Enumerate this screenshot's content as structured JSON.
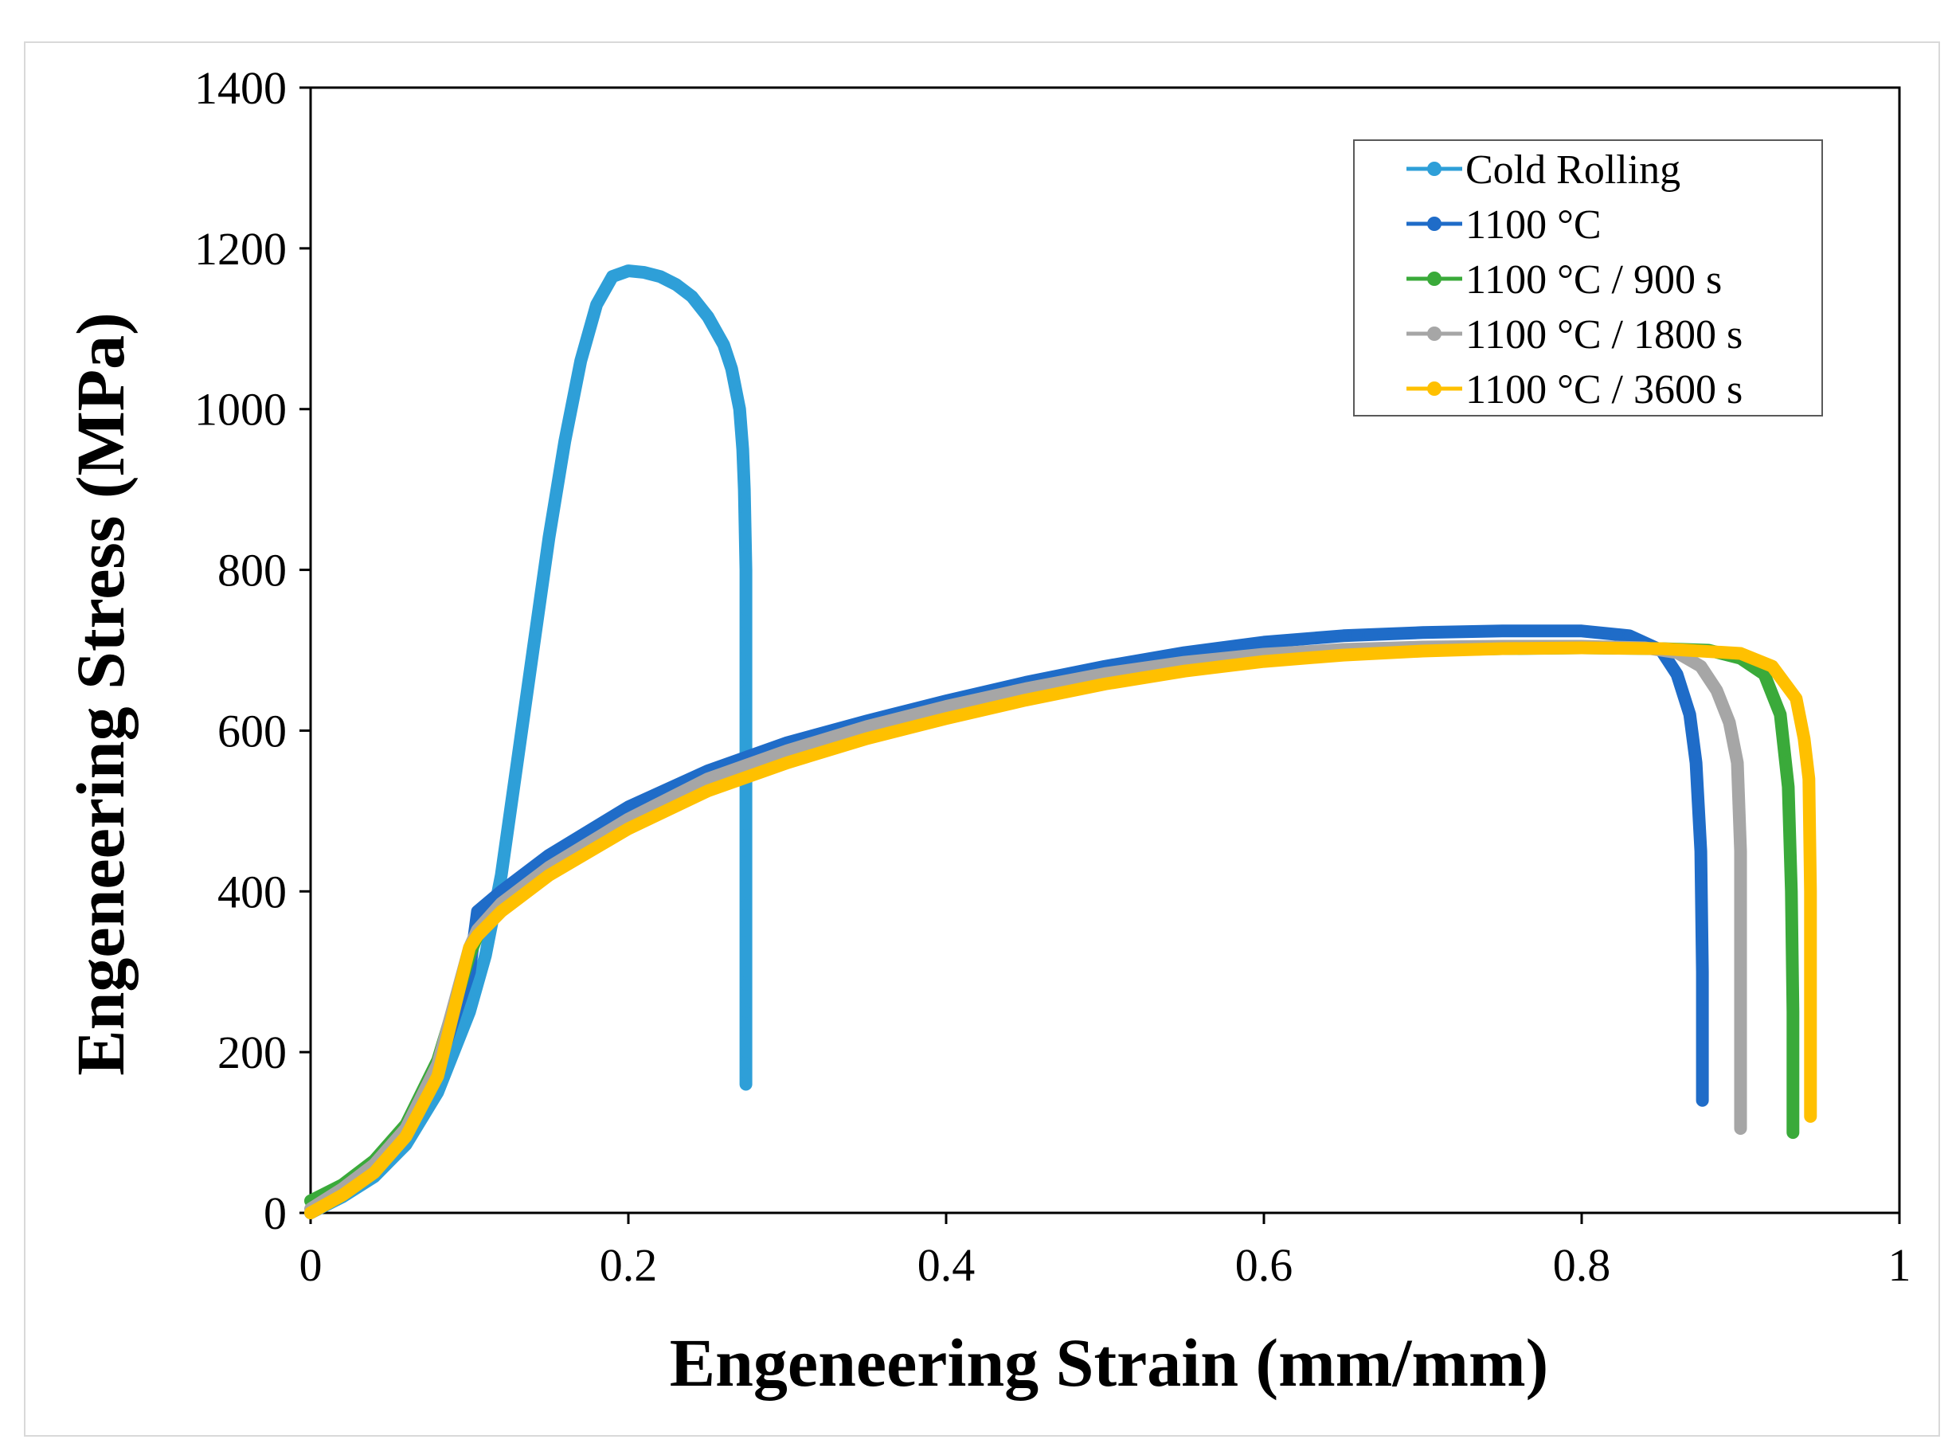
{
  "chart_data": {
    "type": "line",
    "title": "",
    "xlabel": "Engeneering Strain (mm/mm)",
    "ylabel": "Engeneering Stress (MPa)",
    "xlim": [
      0,
      1
    ],
    "ylim": [
      0,
      1400
    ],
    "x_ticks": [
      "0",
      "0.2",
      "0.4",
      "0.6",
      "0.8",
      "1"
    ],
    "y_ticks": [
      "0",
      "200",
      "400",
      "600",
      "800",
      "1000",
      "1200",
      "1400"
    ],
    "grid": false,
    "legend_position": "top-right",
    "series": [
      {
        "name": "Cold Rolling",
        "color": "#2E9FD8",
        "points": [
          [
            0,
            0
          ],
          [
            0.02,
            20
          ],
          [
            0.04,
            45
          ],
          [
            0.06,
            85
          ],
          [
            0.08,
            150
          ],
          [
            0.1,
            250
          ],
          [
            0.11,
            320
          ],
          [
            0.12,
            420
          ],
          [
            0.13,
            560
          ],
          [
            0.14,
            700
          ],
          [
            0.15,
            840
          ],
          [
            0.16,
            960
          ],
          [
            0.17,
            1060
          ],
          [
            0.18,
            1130
          ],
          [
            0.19,
            1165
          ],
          [
            0.2,
            1172
          ],
          [
            0.21,
            1170
          ],
          [
            0.22,
            1165
          ],
          [
            0.23,
            1155
          ],
          [
            0.24,
            1140
          ],
          [
            0.25,
            1115
          ],
          [
            0.26,
            1080
          ],
          [
            0.265,
            1050
          ],
          [
            0.27,
            1000
          ],
          [
            0.272,
            950
          ],
          [
            0.273,
            900
          ],
          [
            0.274,
            800
          ],
          [
            0.274,
            650
          ],
          [
            0.274,
            500
          ],
          [
            0.274,
            350
          ],
          [
            0.274,
            200
          ],
          [
            0.274,
            160
          ]
        ]
      },
      {
        "name": "1100 °C",
        "color": "#1F6CC8",
        "points": [
          [
            0,
            0
          ],
          [
            0.02,
            25
          ],
          [
            0.04,
            55
          ],
          [
            0.06,
            100
          ],
          [
            0.08,
            180
          ],
          [
            0.1,
            300
          ],
          [
            0.105,
            375
          ],
          [
            0.12,
            400
          ],
          [
            0.15,
            445
          ],
          [
            0.2,
            505
          ],
          [
            0.25,
            550
          ],
          [
            0.3,
            585
          ],
          [
            0.35,
            612
          ],
          [
            0.4,
            637
          ],
          [
            0.45,
            660
          ],
          [
            0.5,
            680
          ],
          [
            0.55,
            697
          ],
          [
            0.6,
            710
          ],
          [
            0.65,
            718
          ],
          [
            0.7,
            722
          ],
          [
            0.75,
            724
          ],
          [
            0.8,
            724
          ],
          [
            0.83,
            718
          ],
          [
            0.85,
            700
          ],
          [
            0.86,
            670
          ],
          [
            0.868,
            620
          ],
          [
            0.872,
            560
          ],
          [
            0.875,
            450
          ],
          [
            0.876,
            300
          ],
          [
            0.876,
            140
          ]
        ]
      },
      {
        "name": "1100 °C / 900 s",
        "color": "#3AAA3A",
        "points": [
          [
            0,
            15
          ],
          [
            0.02,
            35
          ],
          [
            0.04,
            65
          ],
          [
            0.06,
            110
          ],
          [
            0.08,
            190
          ],
          [
            0.1,
            320
          ],
          [
            0.105,
            345
          ],
          [
            0.12,
            380
          ],
          [
            0.15,
            425
          ],
          [
            0.2,
            485
          ],
          [
            0.25,
            530
          ],
          [
            0.3,
            565
          ],
          [
            0.35,
            595
          ],
          [
            0.4,
            620
          ],
          [
            0.45,
            643
          ],
          [
            0.5,
            663
          ],
          [
            0.55,
            678
          ],
          [
            0.6,
            689
          ],
          [
            0.65,
            696
          ],
          [
            0.7,
            700
          ],
          [
            0.75,
            702
          ],
          [
            0.8,
            703
          ],
          [
            0.85,
            702
          ],
          [
            0.88,
            700
          ],
          [
            0.9,
            690
          ],
          [
            0.915,
            670
          ],
          [
            0.925,
            620
          ],
          [
            0.93,
            530
          ],
          [
            0.932,
            400
          ],
          [
            0.933,
            250
          ],
          [
            0.933,
            100
          ]
        ]
      },
      {
        "name": "1100 °C / 1800 s",
        "color": "#A6A6A6",
        "points": [
          [
            0,
            5
          ],
          [
            0.02,
            30
          ],
          [
            0.04,
            60
          ],
          [
            0.06,
            105
          ],
          [
            0.08,
            185
          ],
          [
            0.1,
            330
          ],
          [
            0.105,
            352
          ],
          [
            0.12,
            385
          ],
          [
            0.15,
            430
          ],
          [
            0.2,
            490
          ],
          [
            0.25,
            540
          ],
          [
            0.3,
            575
          ],
          [
            0.35,
            605
          ],
          [
            0.4,
            630
          ],
          [
            0.45,
            652
          ],
          [
            0.5,
            671
          ],
          [
            0.55,
            685
          ],
          [
            0.6,
            695
          ],
          [
            0.65,
            701
          ],
          [
            0.7,
            704
          ],
          [
            0.75,
            705
          ],
          [
            0.8,
            705
          ],
          [
            0.84,
            703
          ],
          [
            0.86,
            697
          ],
          [
            0.875,
            680
          ],
          [
            0.885,
            650
          ],
          [
            0.893,
            610
          ],
          [
            0.898,
            560
          ],
          [
            0.9,
            450
          ],
          [
            0.9,
            300
          ],
          [
            0.9,
            105
          ]
        ]
      },
      {
        "name": "1100 °C / 3600 s",
        "color": "#FFC000",
        "points": [
          [
            0,
            0
          ],
          [
            0.02,
            22
          ],
          [
            0.04,
            50
          ],
          [
            0.06,
            95
          ],
          [
            0.08,
            170
          ],
          [
            0.1,
            330
          ],
          [
            0.105,
            345
          ],
          [
            0.12,
            375
          ],
          [
            0.15,
            420
          ],
          [
            0.2,
            478
          ],
          [
            0.25,
            525
          ],
          [
            0.3,
            560
          ],
          [
            0.35,
            590
          ],
          [
            0.4,
            615
          ],
          [
            0.45,
            638
          ],
          [
            0.5,
            658
          ],
          [
            0.55,
            674
          ],
          [
            0.6,
            686
          ],
          [
            0.65,
            694
          ],
          [
            0.7,
            699
          ],
          [
            0.75,
            702
          ],
          [
            0.8,
            703
          ],
          [
            0.85,
            702
          ],
          [
            0.9,
            696
          ],
          [
            0.92,
            680
          ],
          [
            0.935,
            640
          ],
          [
            0.94,
            590
          ],
          [
            0.943,
            540
          ],
          [
            0.944,
            400
          ],
          [
            0.944,
            250
          ],
          [
            0.944,
            120
          ]
        ]
      }
    ]
  }
}
